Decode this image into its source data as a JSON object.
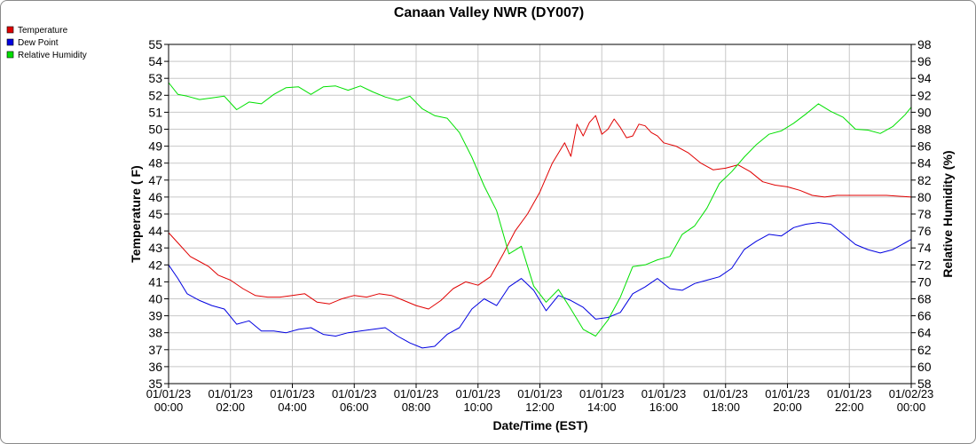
{
  "chart_data": {
    "type": "line",
    "title": "Canaan Valley NWR (DY007)",
    "xlabel": "Date/Time (EST)",
    "ylabel": "Temperature ( F)",
    "ylabel_right": "Relative Humidity (%)",
    "ylim": [
      35,
      55
    ],
    "ylim_right": [
      58,
      98
    ],
    "y_ticks": [
      35,
      36,
      37,
      38,
      39,
      40,
      41,
      42,
      43,
      44,
      45,
      46,
      47,
      48,
      49,
      50,
      51,
      52,
      53,
      54,
      55
    ],
    "y_right_ticks": [
      58,
      60,
      62,
      64,
      66,
      68,
      70,
      72,
      74,
      76,
      78,
      80,
      82,
      84,
      86,
      88,
      90,
      92,
      94,
      96,
      98
    ],
    "x_ticks": [
      {
        "date": "01/01/23",
        "time": "00:00"
      },
      {
        "date": "01/01/23",
        "time": "02:00"
      },
      {
        "date": "01/01/23",
        "time": "04:00"
      },
      {
        "date": "01/01/23",
        "time": "06:00"
      },
      {
        "date": "01/01/23",
        "time": "08:00"
      },
      {
        "date": "01/01/23",
        "time": "10:00"
      },
      {
        "date": "01/01/23",
        "time": "12:00"
      },
      {
        "date": "01/01/23",
        "time": "14:00"
      },
      {
        "date": "01/01/23",
        "time": "16:00"
      },
      {
        "date": "01/01/23",
        "time": "18:00"
      },
      {
        "date": "01/01/23",
        "time": "20:00"
      },
      {
        "date": "01/01/23",
        "time": "22:00"
      },
      {
        "date": "01/02/23",
        "time": "00:00"
      }
    ],
    "grid": true,
    "legend_position": "top-left",
    "x_hours": [
      0,
      0.5,
      1,
      1.5,
      2,
      2.5,
      3,
      3.5,
      4,
      4.5,
      5,
      5.5,
      6,
      6.5,
      7,
      7.5,
      8,
      8.5,
      9,
      9.5,
      10,
      10.5,
      11,
      11.5,
      12,
      12.5,
      13,
      13.5,
      14,
      14.5,
      15,
      15.5,
      16,
      16.5,
      17,
      17.5,
      18,
      18.5,
      19,
      19.5,
      20,
      20.5,
      21,
      21.5,
      22,
      22.5,
      23,
      23.5,
      24
    ],
    "series": [
      {
        "name": "Temperature",
        "color": "#e00000",
        "axis": "left",
        "values": [
          43.9,
          43.3,
          42.5,
          42.2,
          41.9,
          41.4,
          41.1,
          40.6,
          40.2,
          40.1,
          40.1,
          40.2,
          40.3,
          39.8,
          39.7,
          40.0,
          40.2,
          40.1,
          40.3,
          40.2,
          39.9,
          39.6,
          39.4,
          39.9,
          40.6,
          41.0,
          40.8,
          41.3,
          42.6,
          44.0,
          45.0,
          46.3,
          48.0,
          49.2,
          48.4,
          50.3,
          49.6,
          50.4,
          50.8,
          49.7,
          50.0,
          50.6,
          50.1,
          49.5,
          49.6,
          50.3,
          50.2,
          49.8,
          49.6,
          49.2,
          49.0,
          48.6,
          48.0,
          47.6,
          47.7,
          47.9,
          47.5,
          46.9,
          46.7,
          46.6,
          46.4,
          46.1,
          46.0,
          46.1,
          46.1,
          46.1,
          46.0
        ],
        "x": [
          0,
          0.3,
          0.7,
          1.0,
          1.3,
          1.6,
          2.0,
          2.4,
          2.8,
          3.2,
          3.6,
          4.0,
          4.4,
          4.8,
          5.2,
          5.6,
          6.0,
          6.4,
          6.8,
          7.2,
          7.6,
          8.0,
          8.4,
          8.8,
          9.2,
          9.6,
          10.0,
          10.4,
          10.8,
          11.2,
          11.6,
          12.0,
          12.4,
          12.8,
          13.0,
          13.2,
          13.4,
          13.6,
          13.8,
          14.0,
          14.2,
          14.4,
          14.6,
          14.8,
          15.0,
          15.2,
          15.4,
          15.6,
          15.8,
          16.0,
          16.4,
          16.8,
          17.2,
          17.6,
          18.0,
          18.4,
          18.8,
          19.2,
          19.6,
          20.0,
          20.4,
          20.8,
          21.2,
          21.6,
          22.4,
          23.2,
          24
        ]
      },
      {
        "name": "Dew Point",
        "color": "#0000e0",
        "axis": "left",
        "x": [
          0,
          0.3,
          0.6,
          1.0,
          1.4,
          1.8,
          2.2,
          2.6,
          3.0,
          3.4,
          3.8,
          4.2,
          4.6,
          5.0,
          5.4,
          5.8,
          6.2,
          6.6,
          7.0,
          7.4,
          7.8,
          8.2,
          8.6,
          9.0,
          9.4,
          9.8,
          10.2,
          10.6,
          11.0,
          11.4,
          11.8,
          12.2,
          12.6,
          13.0,
          13.4,
          13.8,
          14.2,
          14.6,
          15.0,
          15.4,
          15.8,
          16.2,
          16.6,
          17.0,
          17.4,
          17.8,
          18.2,
          18.6,
          19.0,
          19.4,
          19.8,
          20.2,
          20.6,
          21.0,
          21.4,
          21.8,
          22.2,
          22.6,
          23.0,
          23.4,
          23.8,
          24
        ],
        "values": [
          42.0,
          41.2,
          40.3,
          39.9,
          39.6,
          39.4,
          38.5,
          38.7,
          38.1,
          38.1,
          38.0,
          38.2,
          38.3,
          37.9,
          37.8,
          38.0,
          38.1,
          38.2,
          38.3,
          37.8,
          37.4,
          37.1,
          37.2,
          37.9,
          38.3,
          39.4,
          40.0,
          39.6,
          40.7,
          41.2,
          40.5,
          39.3,
          40.2,
          39.9,
          39.5,
          38.8,
          38.9,
          39.2,
          40.3,
          40.7,
          41.2,
          40.6,
          40.5,
          40.9,
          41.1,
          41.3,
          41.8,
          42.9,
          43.4,
          43.8,
          43.7,
          44.2,
          44.4,
          44.5,
          44.4,
          43.8,
          43.2,
          42.9,
          42.7,
          42.9,
          43.3,
          43.5
        ]
      },
      {
        "name": "Relative Humidity",
        "color": "#00e000",
        "axis": "right",
        "x": [
          0,
          0.3,
          0.6,
          1.0,
          1.4,
          1.8,
          2.2,
          2.6,
          3.0,
          3.4,
          3.8,
          4.2,
          4.6,
          5.0,
          5.4,
          5.8,
          6.2,
          6.6,
          7.0,
          7.4,
          7.8,
          8.2,
          8.6,
          9.0,
          9.4,
          9.8,
          10.2,
          10.6,
          11.0,
          11.4,
          11.8,
          12.2,
          12.6,
          13.0,
          13.4,
          13.8,
          14.2,
          14.6,
          15.0,
          15.4,
          15.8,
          16.2,
          16.6,
          17.0,
          17.4,
          17.8,
          18.2,
          18.6,
          19.0,
          19.4,
          19.8,
          20.2,
          20.6,
          21.0,
          21.4,
          21.8,
          22.2,
          22.6,
          23.0,
          23.4,
          23.8,
          24
        ],
        "values": [
          93.5,
          92.1,
          91.9,
          91.5,
          91.7,
          91.9,
          90.3,
          91.2,
          91.0,
          92.1,
          92.9,
          93.0,
          92.1,
          93.0,
          93.1,
          92.6,
          93.1,
          92.4,
          91.8,
          91.4,
          91.9,
          90.4,
          89.6,
          89.3,
          87.6,
          84.7,
          81.3,
          78.4,
          73.3,
          74.2,
          69.5,
          67.6,
          69.1,
          66.8,
          64.4,
          63.6,
          65.5,
          68.2,
          71.8,
          72.0,
          72.6,
          73.0,
          75.6,
          76.6,
          78.7,
          81.6,
          83.0,
          84.7,
          86.2,
          87.4,
          87.8,
          88.7,
          89.8,
          91.0,
          90.1,
          89.4,
          88.0,
          87.9,
          87.5,
          88.3,
          89.7,
          90.6
        ]
      }
    ]
  }
}
